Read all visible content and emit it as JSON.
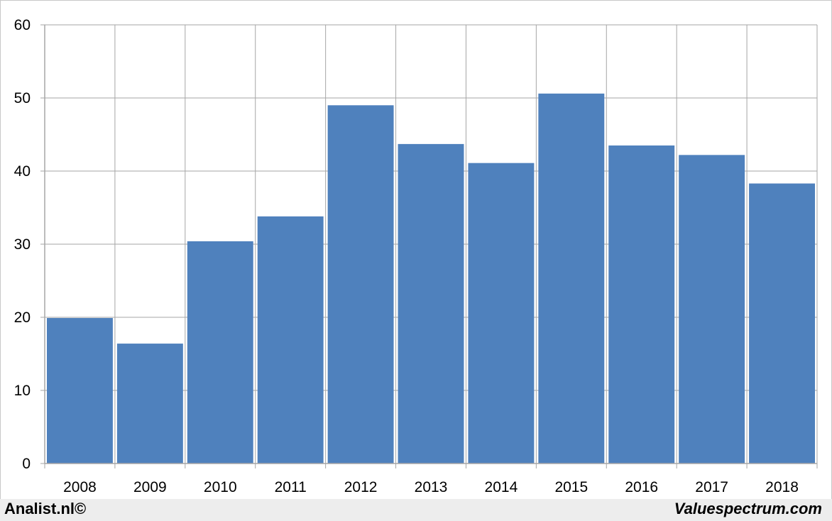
{
  "chart_data": {
    "type": "bar",
    "categories": [
      "2008",
      "2009",
      "2010",
      "2011",
      "2012",
      "2013",
      "2014",
      "2015",
      "2016",
      "2017",
      "2018"
    ],
    "values": [
      19.9,
      16.4,
      30.4,
      33.8,
      49.0,
      43.7,
      41.1,
      50.6,
      43.5,
      42.2,
      38.3
    ],
    "ylim": [
      0,
      60
    ],
    "yticks": [
      "0",
      "10",
      "20",
      "30",
      "40",
      "50",
      "60"
    ],
    "grid": true,
    "bar_color": "#4f81bd",
    "grid_color": "#a6a6a6"
  },
  "footer": {
    "left": "Analist.nl©",
    "right": "Valuespectrum.com"
  }
}
